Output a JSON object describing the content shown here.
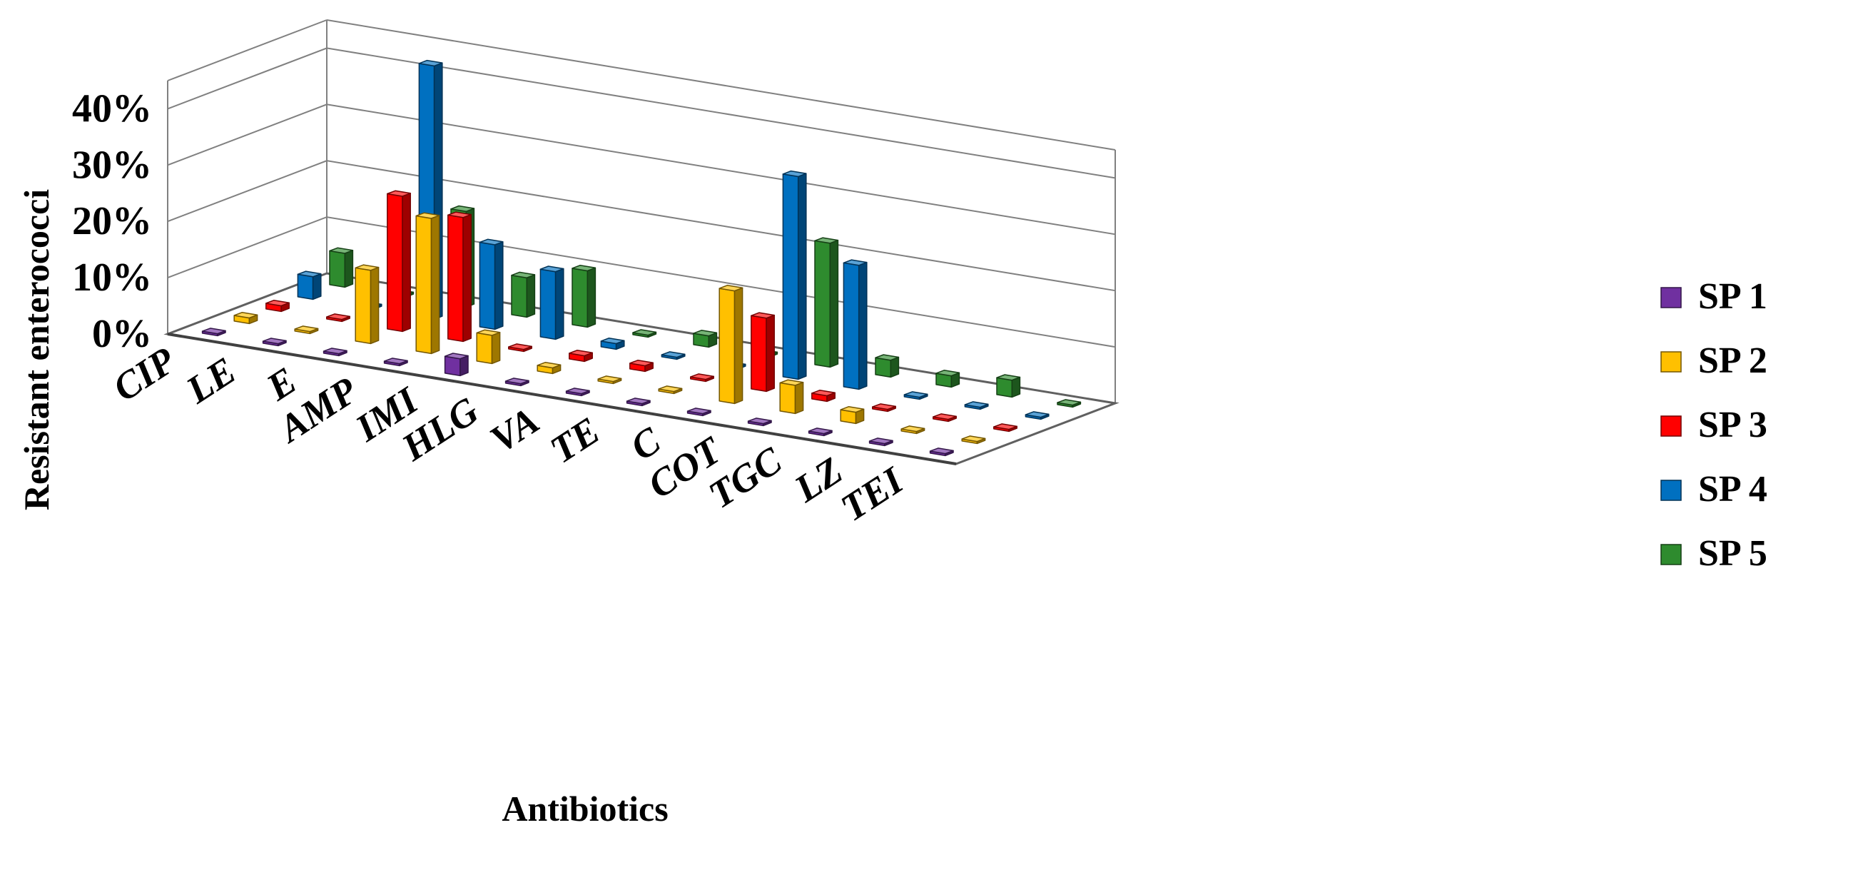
{
  "chart_data": {
    "type": "bar",
    "subtype": "3d-column",
    "xlabel": "Antibiotics",
    "ylabel": "Resistant enterococci",
    "ylim": [
      0,
      45
    ],
    "yticks": [
      "0%",
      "10%",
      "20%",
      "30%",
      "40%"
    ],
    "ytick_values": [
      0,
      10,
      20,
      30,
      40
    ],
    "categories": [
      "CIP",
      "LE",
      "E",
      "AMP",
      "IMI",
      "HLG",
      "VA",
      "TE",
      "C",
      "COT",
      "TGC",
      "LZ",
      "TEI"
    ],
    "series": [
      {
        "name": "SP 1",
        "color": "#7030A0",
        "values": [
          0,
          0,
          0,
          0,
          3,
          0,
          0,
          0,
          0,
          0,
          0,
          0,
          0
        ]
      },
      {
        "name": "SP 2",
        "color": "#FFC000",
        "values": [
          1,
          0,
          13,
          24,
          5,
          1,
          0,
          0,
          20,
          5,
          2,
          0,
          0
        ]
      },
      {
        "name": "SP 3",
        "color": "#FF0000",
        "values": [
          1,
          0,
          24,
          22,
          0,
          1,
          1,
          0,
          13,
          1,
          0,
          0,
          0
        ]
      },
      {
        "name": "SP 4",
        "color": "#0070C0",
        "values": [
          4,
          0,
          45,
          15,
          12,
          1,
          0,
          0,
          36,
          22,
          0,
          0,
          0
        ]
      },
      {
        "name": "SP 5",
        "color": "#2E8B2E",
        "values": [
          6,
          0,
          17,
          7,
          10,
          0,
          2,
          0,
          22,
          3,
          2,
          3,
          0
        ]
      }
    ],
    "legend_position": "right",
    "grid": true
  }
}
